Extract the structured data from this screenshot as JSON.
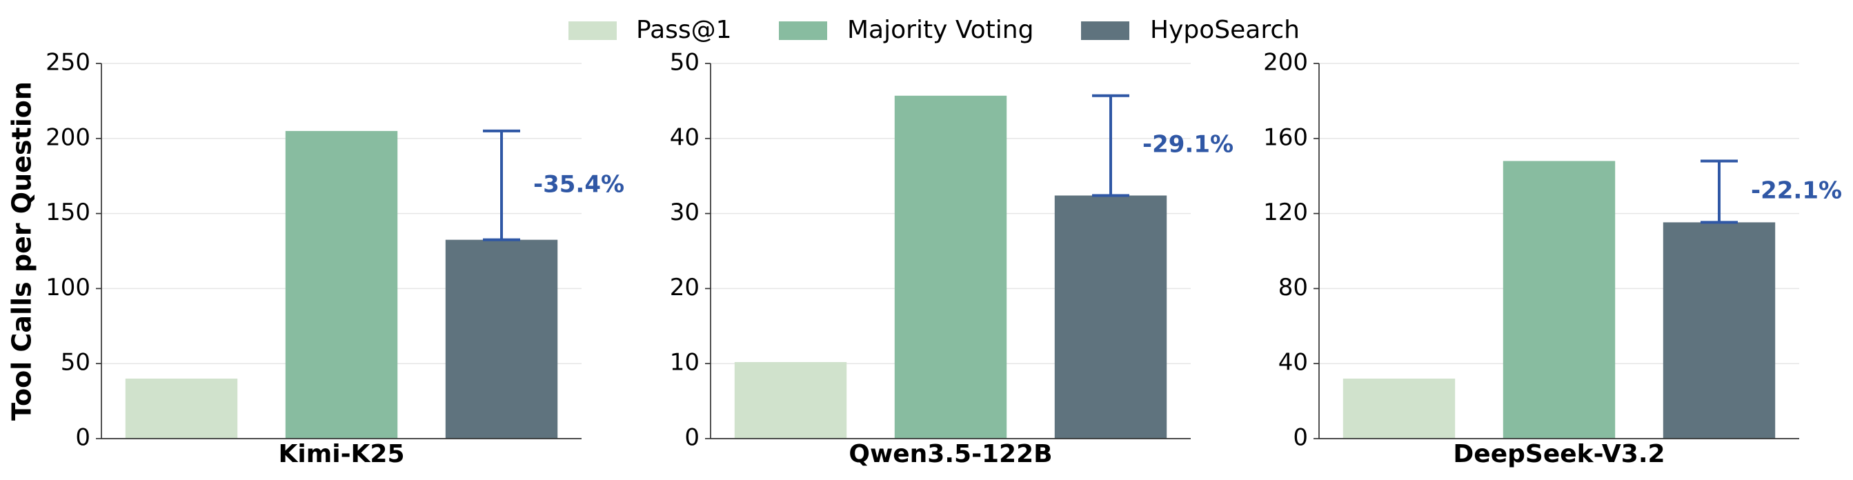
{
  "chart_data": [
    {
      "type": "bar",
      "ylabel": "Tool Calls per Question",
      "categories": [
        "Kimi-K25"
      ],
      "series": [
        {
          "name": "Pass@1",
          "color": "#d0e2cc",
          "values": [
            40
          ]
        },
        {
          "name": "Majority Voting",
          "color": "#88bca0",
          "values": [
            205
          ]
        },
        {
          "name": "HypoSearch",
          "color": "#5f737e",
          "values": [
            132.5
          ]
        }
      ],
      "ylim": [
        0,
        250
      ],
      "yticks": [
        0,
        50,
        100,
        150,
        200,
        250
      ],
      "grid": true,
      "annotation": "-35.4%",
      "annotation_color": "#2f57a5"
    },
    {
      "type": "bar",
      "categories": [
        "Qwen3.5-122B"
      ],
      "series": [
        {
          "name": "Pass@1",
          "color": "#d0e2cc",
          "values": [
            10.2
          ]
        },
        {
          "name": "Majority Voting",
          "color": "#88bca0",
          "values": [
            45.7
          ]
        },
        {
          "name": "HypoSearch",
          "color": "#5f737e",
          "values": [
            32.4
          ]
        }
      ],
      "ylim": [
        0,
        50
      ],
      "yticks": [
        0,
        10,
        20,
        30,
        40,
        50
      ],
      "grid": true,
      "annotation": "-29.1%",
      "annotation_color": "#2f57a5"
    },
    {
      "type": "bar",
      "categories": [
        "DeepSeek-V3.2"
      ],
      "series": [
        {
          "name": "Pass@1",
          "color": "#d0e2cc",
          "values": [
            32
          ]
        },
        {
          "name": "Majority Voting",
          "color": "#88bca0",
          "values": [
            148
          ]
        },
        {
          "name": "HypoSearch",
          "color": "#5f737e",
          "values": [
            115.3
          ]
        }
      ],
      "ylim": [
        0,
        200
      ],
      "yticks": [
        0,
        40,
        80,
        120,
        160,
        200
      ],
      "grid": true,
      "annotation": "-22.1%",
      "annotation_color": "#2f57a5"
    }
  ]
}
